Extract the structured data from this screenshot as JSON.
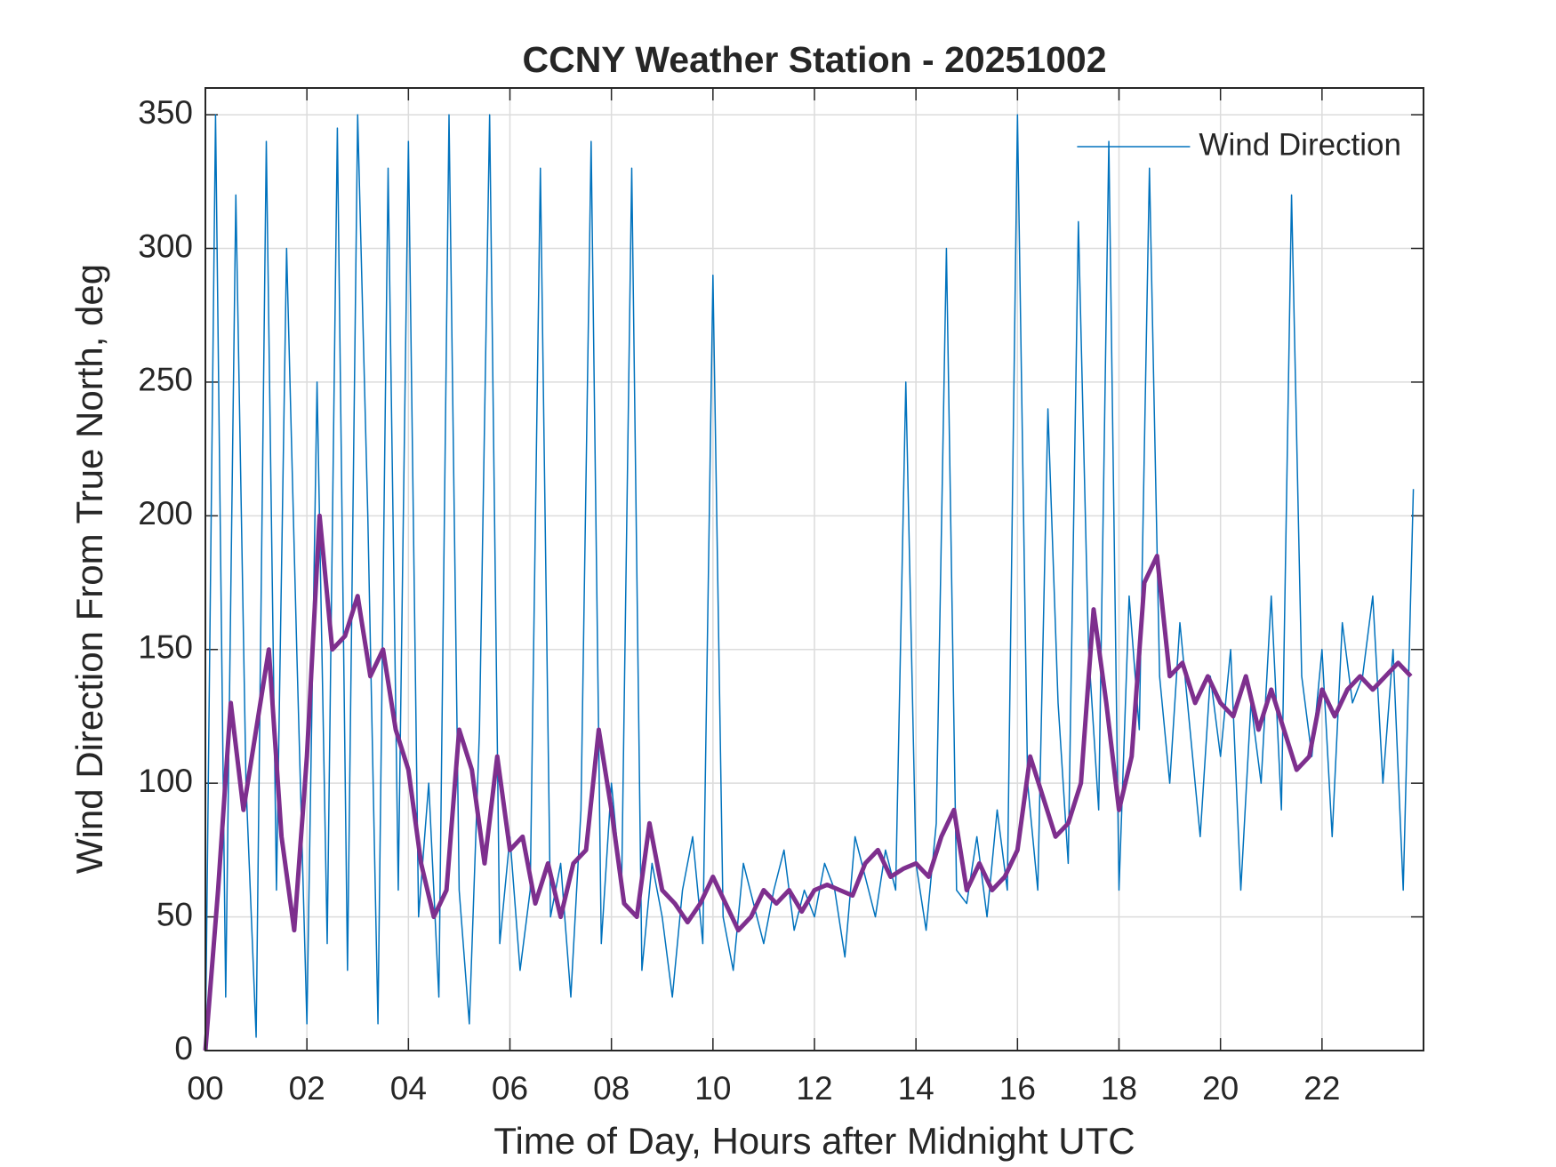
{
  "chart_data": {
    "type": "line",
    "title": "CCNY Weather Station - 20251002",
    "xlabel": "Time of Day, Hours after Midnight UTC",
    "ylabel": "Wind Direction From True North, deg",
    "xlim": [
      0,
      24
    ],
    "ylim": [
      0,
      360
    ],
    "xticks": [
      {
        "value": 0,
        "label": "00"
      },
      {
        "value": 2,
        "label": "02"
      },
      {
        "value": 4,
        "label": "04"
      },
      {
        "value": 6,
        "label": "06"
      },
      {
        "value": 8,
        "label": "08"
      },
      {
        "value": 10,
        "label": "10"
      },
      {
        "value": 12,
        "label": "12"
      },
      {
        "value": 14,
        "label": "14"
      },
      {
        "value": 16,
        "label": "16"
      },
      {
        "value": 18,
        "label": "18"
      },
      {
        "value": 20,
        "label": "20"
      },
      {
        "value": 22,
        "label": "22"
      }
    ],
    "yticks": [
      0,
      50,
      100,
      150,
      200,
      250,
      300,
      350
    ],
    "grid": true,
    "legend": "upper right",
    "series": [
      {
        "name": "Wind Direction",
        "color": "#0072bd",
        "width": 1.5,
        "x": [
          0,
          0.2,
          0.4,
          0.6,
          0.8,
          1,
          1.2,
          1.4,
          1.6,
          1.8,
          2,
          2.2,
          2.4,
          2.6,
          2.8,
          3,
          3.2,
          3.4,
          3.6,
          3.8,
          4,
          4.2,
          4.4,
          4.6,
          4.8,
          5,
          5.2,
          5.4,
          5.6,
          5.8,
          6,
          6.2,
          6.4,
          6.6,
          6.8,
          7,
          7.2,
          7.4,
          7.6,
          7.8,
          8,
          8.2,
          8.4,
          8.6,
          8.8,
          9,
          9.2,
          9.4,
          9.6,
          9.8,
          10,
          10.2,
          10.4,
          10.6,
          10.8,
          11,
          11.2,
          11.4,
          11.6,
          11.8,
          12,
          12.2,
          12.4,
          12.6,
          12.8,
          13,
          13.2,
          13.4,
          13.6,
          13.8,
          14,
          14.2,
          14.4,
          14.6,
          14.8,
          15,
          15.2,
          15.4,
          15.6,
          15.8,
          16,
          16.2,
          16.4,
          16.6,
          16.8,
          17,
          17.2,
          17.4,
          17.6,
          17.8,
          18,
          18.2,
          18.4,
          18.6,
          18.8,
          19,
          19.2,
          19.4,
          19.6,
          19.8,
          20,
          20.2,
          20.4,
          20.6,
          20.8,
          21,
          21.2,
          21.4,
          21.6,
          21.8,
          22,
          22.2,
          22.4,
          22.6,
          22.8,
          23,
          23.2,
          23.4,
          23.6,
          23.8
        ],
        "values": [
          0,
          350,
          20,
          320,
          100,
          5,
          340,
          60,
          300,
          150,
          10,
          250,
          40,
          345,
          30,
          350,
          200,
          10,
          330,
          60,
          340,
          50,
          100,
          20,
          350,
          60,
          10,
          120,
          350,
          40,
          80,
          30,
          60,
          330,
          50,
          70,
          20,
          90,
          340,
          40,
          100,
          60,
          330,
          30,
          70,
          50,
          20,
          60,
          80,
          40,
          290,
          50,
          30,
          70,
          55,
          40,
          60,
          75,
          45,
          60,
          50,
          70,
          60,
          35,
          80,
          65,
          50,
          75,
          60,
          250,
          70,
          45,
          85,
          300,
          60,
          55,
          80,
          50,
          90,
          60,
          350,
          100,
          60,
          240,
          130,
          70,
          310,
          150,
          90,
          340,
          60,
          170,
          120,
          330,
          140,
          100,
          160,
          120,
          80,
          140,
          110,
          150,
          60,
          130,
          100,
          170,
          90,
          320,
          140,
          110,
          150,
          80,
          160,
          130,
          140,
          170,
          100,
          150,
          60,
          210
        ]
      },
      {
        "color": "#7e2f8e",
        "width": 5,
        "x": [
          0,
          0.25,
          0.5,
          0.75,
          1,
          1.25,
          1.5,
          1.75,
          2,
          2.25,
          2.5,
          2.75,
          3,
          3.25,
          3.5,
          3.75,
          4,
          4.25,
          4.5,
          4.75,
          5,
          5.25,
          5.5,
          5.75,
          6,
          6.25,
          6.5,
          6.75,
          7,
          7.25,
          7.5,
          7.75,
          8,
          8.25,
          8.5,
          8.75,
          9,
          9.25,
          9.5,
          9.75,
          10,
          10.25,
          10.5,
          10.75,
          11,
          11.25,
          11.5,
          11.75,
          12,
          12.25,
          12.5,
          12.75,
          13,
          13.25,
          13.5,
          13.75,
          14,
          14.25,
          14.5,
          14.75,
          15,
          15.25,
          15.5,
          15.75,
          16,
          16.25,
          16.5,
          16.75,
          17,
          17.25,
          17.5,
          17.75,
          18,
          18.25,
          18.5,
          18.75,
          19,
          19.25,
          19.5,
          19.75,
          20,
          20.25,
          20.5,
          20.75,
          21,
          21.25,
          21.5,
          21.75,
          22,
          22.25,
          22.5,
          22.75,
          23,
          23.25,
          23.5,
          23.75
        ],
        "values": [
          0,
          60,
          130,
          90,
          120,
          150,
          80,
          45,
          110,
          200,
          150,
          155,
          170,
          140,
          150,
          120,
          105,
          70,
          50,
          60,
          120,
          105,
          70,
          110,
          75,
          80,
          55,
          70,
          50,
          70,
          75,
          120,
          90,
          55,
          50,
          85,
          60,
          55,
          48,
          55,
          65,
          55,
          45,
          50,
          60,
          55,
          60,
          52,
          60,
          62,
          60,
          58,
          70,
          75,
          65,
          68,
          70,
          65,
          80,
          90,
          60,
          70,
          60,
          65,
          75,
          110,
          95,
          80,
          85,
          100,
          165,
          130,
          90,
          110,
          175,
          185,
          140,
          145,
          130,
          140,
          130,
          125,
          140,
          120,
          135,
          120,
          105,
          110,
          135,
          125,
          135,
          140,
          135,
          140,
          145,
          140
        ]
      }
    ]
  }
}
